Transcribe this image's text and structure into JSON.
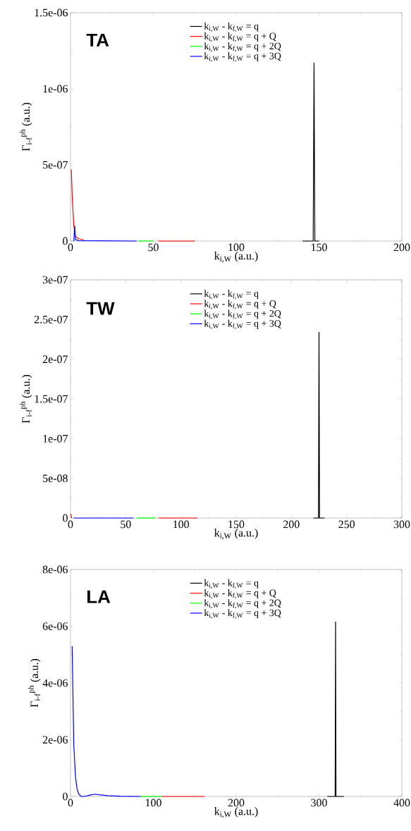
{
  "chart_data": [
    {
      "type": "line",
      "title": "TA",
      "xlabel": "k$_{i,W}$ (a.u.)",
      "ylabel": "Γ$_{i-f}$$^{ph}$ (a.u.)",
      "legend": "top",
      "xlim": [
        0,
        200
      ],
      "xticks": [
        0,
        50,
        100,
        150,
        200
      ],
      "ylim": [
        0,
        1.5e-06
      ],
      "yticks": [
        0,
        {
          "value": 5e-07,
          "label": "5e-07"
        },
        {
          "value": 1e-06,
          "label": "1e-06"
        },
        {
          "value": 1.5e-06,
          "label": "1.5e-06"
        }
      ],
      "series": [
        {
          "name": "k$_{i,W}$ - k$_{f,W}$ = q",
          "color": "#000000",
          "x": [
            140,
            146.5,
            147,
            147.5,
            150
          ],
          "values": [
            0,
            0,
            1.17e-06,
            0,
            0
          ]
        },
        {
          "name": "k$_{i,W}$ - k$_{f,W}$ = q + Q",
          "color": "#ff0000",
          "x": [
            0.5,
            1,
            2,
            3,
            5,
            8,
            30,
            53,
            75
          ],
          "values": [
            4.7e-07,
            3e-07,
            1e-07,
            3e-08,
            1.5e-08,
            8e-09,
            null,
            0,
            0
          ]
        },
        {
          "name": "k$_{i,W}$ - k$_{f,W}$ = q + 2Q",
          "color": "#00ff00",
          "x": [
            41,
            50
          ],
          "values": [
            0,
            0
          ]
        },
        {
          "name": "k$_{i,W}$ - k$_{f,W}$ = q + 3Q",
          "color": "#0000ff",
          "x": [
            2,
            2.5,
            3,
            5,
            40
          ],
          "values": [
            0,
            1e-07,
            1e-08,
            3e-09,
            0
          ]
        }
      ]
    },
    {
      "type": "line",
      "title": "TW",
      "xlabel": "k$_{i,W}$ (a.u.)",
      "ylabel": "Γ$_{i-f}$$^{ph}$ (a.u.)",
      "legend": "top",
      "xlim": [
        0,
        300
      ],
      "xticks": [
        0,
        50,
        100,
        150,
        200,
        250,
        300
      ],
      "ylim": [
        0,
        3e-07
      ],
      "yticks": [
        0,
        {
          "value": 5e-08,
          "label": "5e-08"
        },
        {
          "value": 1e-07,
          "label": "1e-07"
        },
        {
          "value": 1.5e-07,
          "label": "1.5e-07"
        },
        {
          "value": 2e-07,
          "label": "2e-07"
        },
        {
          "value": 2.5e-07,
          "label": "2.5e-07"
        },
        {
          "value": 3e-07,
          "label": "3e-07"
        }
      ],
      "series": [
        {
          "name": "k$_{i,W}$ - k$_{f,W}$ = q",
          "color": "#000000",
          "x": [
            220,
            224.5,
            225,
            225.5,
            230
          ],
          "values": [
            0,
            0,
            2.34e-07,
            0,
            0
          ]
        },
        {
          "name": "k$_{i,W}$ - k$_{f,W}$ = q + Q",
          "color": "#ff0000",
          "x": [
            0.3,
            1,
            40,
            80,
            115
          ],
          "values": [
            5e-09,
            0,
            null,
            0,
            0
          ]
        },
        {
          "name": "k$_{i,W}$ - k$_{f,W}$ = q + 2Q",
          "color": "#00ff00",
          "x": [
            60,
            77
          ],
          "values": [
            0,
            0
          ]
        },
        {
          "name": "k$_{i,W}$ - k$_{f,W}$ = q + 3Q",
          "color": "#0000ff",
          "x": [
            3,
            57
          ],
          "values": [
            0,
            0
          ]
        }
      ]
    },
    {
      "type": "line",
      "title": "LA",
      "xlabel": "k$_{i,W}$ (a.u.)",
      "ylabel": "Γ$_{i-f}$$^{ph}$ (a.u.)",
      "legend": "top",
      "xlim": [
        0,
        400
      ],
      "xticks": [
        0,
        100,
        200,
        300,
        400
      ],
      "ylim": [
        0,
        8e-06
      ],
      "yticks": [
        0,
        {
          "value": 2e-06,
          "label": "2e-06"
        },
        {
          "value": 4e-06,
          "label": "4e-06"
        },
        {
          "value": 6e-06,
          "label": "6e-06"
        },
        {
          "value": 8e-06,
          "label": "8e-06"
        }
      ],
      "series": [
        {
          "name": "k$_{i,W}$ - k$_{f,W}$ = q",
          "color": "#000000",
          "x": [
            310,
            319.5,
            320,
            320.5,
            330
          ],
          "values": [
            0,
            0,
            6.15e-06,
            0,
            0
          ]
        },
        {
          "name": "k$_{i,W}$ - k$_{f,W}$ = q + Q",
          "color": "#ff0000",
          "x": [
            110,
            162
          ],
          "values": [
            0,
            0
          ]
        },
        {
          "name": "k$_{i,W}$ - k$_{f,W}$ = q + 2Q",
          "color": "#00ff00",
          "x": [
            85,
            110
          ],
          "values": [
            0,
            0
          ]
        },
        {
          "name": "k$_{i,W}$ - k$_{f,W}$ = q + 3Q",
          "color": "#0000ff",
          "x": [
            2,
            3,
            4,
            6,
            8,
            10,
            13,
            16,
            20,
            25,
            30,
            35,
            45,
            60,
            85
          ],
          "values": [
            5.3e-06,
            3.5e-06,
            1.8e-06,
            7e-07,
            2.5e-07,
            8e-08,
            0,
            0,
            2e-08,
            6e-08,
            8e-08,
            6e-08,
            3e-08,
            1e-08,
            0
          ]
        }
      ]
    }
  ]
}
